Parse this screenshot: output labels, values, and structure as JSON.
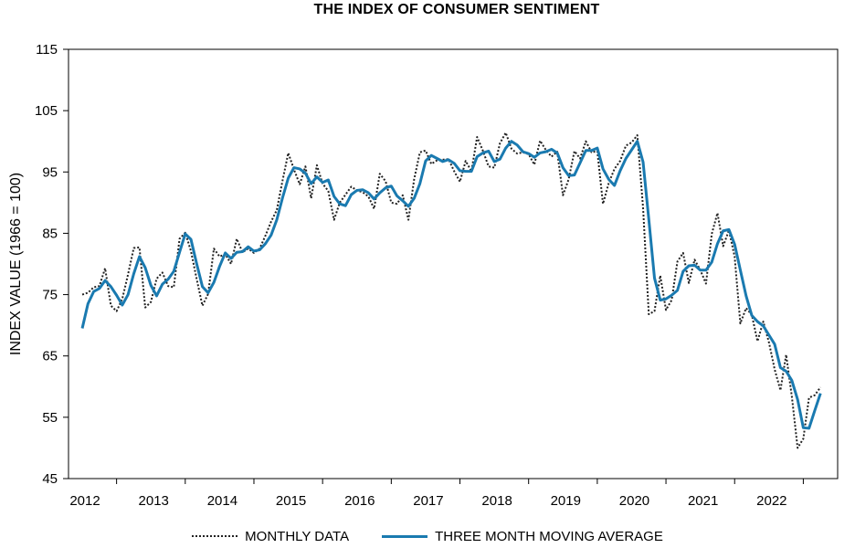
{
  "chart_data": {
    "type": "line",
    "title": "THE INDEX OF CONSUMER SENTIMENT",
    "xlabel": "",
    "ylabel": "INDEX VALUE (1966 = 100)",
    "ylim": [
      45,
      115
    ],
    "yticks": [
      45,
      55,
      65,
      75,
      85,
      95,
      105,
      115
    ],
    "xlim": [
      2011.8,
      2023.0
    ],
    "xticks": [
      2012,
      2013,
      2014,
      2015,
      2016,
      2017,
      2018,
      2019,
      2020,
      2021,
      2022
    ],
    "grid": false,
    "legend_position": "bottom",
    "series": [
      {
        "name": "MONTHLY DATA",
        "style": "dotted",
        "color": "#222222",
        "x": [
          2012.0,
          2012.083,
          2012.167,
          2012.25,
          2012.333,
          2012.417,
          2012.5,
          2012.583,
          2012.667,
          2012.75,
          2012.833,
          2012.917,
          2013.0,
          2013.083,
          2013.167,
          2013.25,
          2013.333,
          2013.417,
          2013.5,
          2013.583,
          2013.667,
          2013.75,
          2013.833,
          2013.917,
          2014.0,
          2014.083,
          2014.167,
          2014.25,
          2014.333,
          2014.417,
          2014.5,
          2014.583,
          2014.667,
          2014.75,
          2014.833,
          2014.917,
          2015.0,
          2015.083,
          2015.167,
          2015.25,
          2015.333,
          2015.417,
          2015.5,
          2015.583,
          2015.667,
          2015.75,
          2015.833,
          2015.917,
          2016.0,
          2016.083,
          2016.167,
          2016.25,
          2016.333,
          2016.417,
          2016.5,
          2016.583,
          2016.667,
          2016.75,
          2016.833,
          2016.917,
          2017.0,
          2017.083,
          2017.167,
          2017.25,
          2017.333,
          2017.417,
          2017.5,
          2017.583,
          2017.667,
          2017.75,
          2017.833,
          2017.917,
          2018.0,
          2018.083,
          2018.167,
          2018.25,
          2018.333,
          2018.417,
          2018.5,
          2018.583,
          2018.667,
          2018.75,
          2018.833,
          2018.917,
          2019.0,
          2019.083,
          2019.167,
          2019.25,
          2019.333,
          2019.417,
          2019.5,
          2019.583,
          2019.667,
          2019.75,
          2019.833,
          2019.917,
          2020.0,
          2020.083,
          2020.167,
          2020.25,
          2020.333,
          2020.417,
          2020.5,
          2020.583,
          2020.667,
          2020.75,
          2020.833,
          2020.917,
          2021.0,
          2021.083,
          2021.167,
          2021.25,
          2021.333,
          2021.417,
          2021.5,
          2021.583,
          2021.667,
          2021.75,
          2021.833,
          2021.917,
          2022.0,
          2022.083,
          2022.167,
          2022.25,
          2022.333,
          2022.417,
          2022.5,
          2022.583,
          2022.667,
          2022.75
        ],
        "values": [
          75.0,
          75.3,
          76.2,
          76.4,
          79.3,
          73.2,
          72.3,
          74.3,
          78.3,
          82.6,
          82.7,
          72.9,
          73.8,
          77.6,
          78.6,
          76.4,
          76.2,
          84.1,
          85.1,
          82.1,
          77.5,
          73.2,
          75.1,
          82.5,
          81.2,
          81.6,
          80.0,
          84.1,
          81.9,
          82.5,
          81.8,
          82.5,
          84.6,
          86.9,
          88.8,
          93.6,
          98.1,
          95.4,
          93.0,
          95.9,
          90.7,
          96.1,
          93.1,
          91.9,
          87.2,
          90.0,
          91.3,
          92.6,
          92.0,
          91.7,
          91.0,
          89.0,
          94.7,
          93.5,
          90.0,
          89.8,
          91.2,
          87.2,
          93.8,
          98.2,
          98.5,
          96.3,
          96.9,
          97.0,
          97.1,
          95.1,
          93.4,
          96.8,
          95.1,
          100.7,
          98.5,
          95.9,
          95.7,
          99.7,
          101.4,
          98.8,
          98.0,
          98.2,
          97.9,
          96.2,
          100.1,
          98.6,
          97.5,
          98.3,
          91.2,
          93.8,
          98.4,
          97.2,
          100.0,
          98.2,
          98.4,
          89.8,
          93.2,
          95.5,
          96.8,
          99.3,
          99.8,
          101.0,
          89.1,
          71.8,
          72.3,
          78.1,
          72.5,
          74.1,
          80.4,
          81.8,
          76.9,
          80.7,
          79.0,
          76.8,
          84.9,
          88.3,
          82.9,
          85.5,
          81.2,
          70.3,
          72.8,
          71.7,
          67.4,
          70.6,
          67.2,
          62.8,
          59.4,
          65.2,
          58.4,
          50.0,
          51.5,
          58.2,
          58.6,
          59.9
        ]
      },
      {
        "name": "THREE MONTH MOVING AVERAGE",
        "style": "solid",
        "color": "#1a7ab0",
        "x": [
          2012.0,
          2012.083,
          2012.167,
          2012.25,
          2012.333,
          2012.417,
          2012.5,
          2012.583,
          2012.667,
          2012.75,
          2012.833,
          2012.917,
          2013.0,
          2013.083,
          2013.167,
          2013.25,
          2013.333,
          2013.417,
          2013.5,
          2013.583,
          2013.667,
          2013.75,
          2013.833,
          2013.917,
          2014.0,
          2014.083,
          2014.167,
          2014.25,
          2014.333,
          2014.417,
          2014.5,
          2014.583,
          2014.667,
          2014.75,
          2014.833,
          2014.917,
          2015.0,
          2015.083,
          2015.167,
          2015.25,
          2015.333,
          2015.417,
          2015.5,
          2015.583,
          2015.667,
          2015.75,
          2015.833,
          2015.917,
          2016.0,
          2016.083,
          2016.167,
          2016.25,
          2016.333,
          2016.417,
          2016.5,
          2016.583,
          2016.667,
          2016.75,
          2016.833,
          2016.917,
          2017.0,
          2017.083,
          2017.167,
          2017.25,
          2017.333,
          2017.417,
          2017.5,
          2017.583,
          2017.667,
          2017.75,
          2017.833,
          2017.917,
          2018.0,
          2018.083,
          2018.167,
          2018.25,
          2018.333,
          2018.417,
          2018.5,
          2018.583,
          2018.667,
          2018.75,
          2018.833,
          2018.917,
          2019.0,
          2019.083,
          2019.167,
          2019.25,
          2019.333,
          2019.417,
          2019.5,
          2019.583,
          2019.667,
          2019.75,
          2019.833,
          2019.917,
          2020.0,
          2020.083,
          2020.167,
          2020.25,
          2020.333,
          2020.417,
          2020.5,
          2020.583,
          2020.667,
          2020.75,
          2020.833,
          2020.917,
          2021.0,
          2021.083,
          2021.167,
          2021.25,
          2021.333,
          2021.417,
          2021.5,
          2021.583,
          2021.667,
          2021.75,
          2021.833,
          2021.917,
          2022.0,
          2022.083,
          2022.167,
          2022.25,
          2022.333,
          2022.417,
          2022.5,
          2022.583,
          2022.667,
          2022.75
        ],
        "values": [
          69.5,
          73.5,
          75.5,
          76.0,
          77.3,
          76.3,
          74.9,
          73.3,
          75.0,
          78.4,
          81.2,
          79.4,
          76.5,
          74.8,
          76.7,
          77.5,
          78.8,
          81.9,
          84.9,
          84.0,
          80.0,
          76.3,
          75.3,
          77.0,
          79.6,
          81.8,
          80.9,
          81.9,
          82.0,
          82.8,
          82.1,
          82.3,
          83.3,
          84.7,
          87.2,
          90.8,
          94.0,
          95.7,
          95.5,
          94.8,
          93.1,
          94.2,
          93.3,
          93.7,
          91.0,
          89.8,
          89.5,
          91.3,
          92.0,
          92.1,
          91.6,
          90.6,
          91.6,
          92.4,
          92.7,
          91.1,
          90.3,
          89.4,
          90.7,
          93.1,
          96.8,
          97.7,
          97.2,
          96.7,
          97.0,
          96.4,
          95.2,
          95.1,
          95.1,
          97.5,
          98.1,
          98.4,
          96.7,
          97.1,
          98.9,
          100.0,
          99.4,
          98.3,
          98.0,
          97.4,
          98.1,
          98.3,
          98.7,
          98.1,
          95.7,
          94.4,
          94.5,
          96.5,
          98.5,
          98.5,
          98.9,
          95.5,
          93.8,
          92.8,
          95.2,
          97.2,
          98.6,
          100.0,
          96.6,
          87.3,
          77.7,
          74.1,
          74.3,
          74.9,
          75.7,
          78.8,
          79.7,
          79.8,
          79.0,
          79.0,
          80.3,
          83.3,
          85.4,
          85.6,
          83.2,
          79.0,
          74.8,
          71.6,
          70.6,
          69.9,
          68.4,
          66.9,
          63.1,
          62.5,
          61.0,
          57.9,
          53.3,
          53.2,
          56.1,
          58.9
        ]
      }
    ]
  }
}
